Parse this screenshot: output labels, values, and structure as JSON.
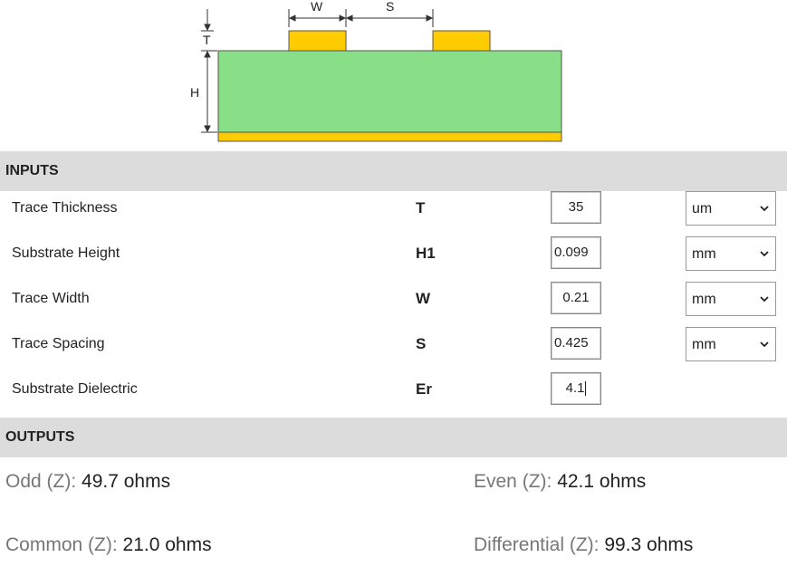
{
  "diagram": {
    "labels": {
      "w": "W",
      "s": "S",
      "t": "T",
      "h": "H"
    },
    "colors": {
      "substrate": "#88df88",
      "trace": "#ffcc00",
      "ground": "#ffcc00",
      "outline": "#555555"
    }
  },
  "inputs": {
    "header": "INPUTS",
    "rows": [
      {
        "label": "Trace Thickness",
        "symbol": "T",
        "value": "35",
        "unit": "um"
      },
      {
        "label": "Substrate Height",
        "symbol": "H1",
        "value": "0.099",
        "unit": "mm"
      },
      {
        "label": "Trace Width",
        "symbol": "W",
        "value": "0.21",
        "unit": "mm"
      },
      {
        "label": "Trace Spacing",
        "symbol": "S",
        "value": "0.425",
        "unit": "mm"
      },
      {
        "label": "Substrate Dielectric",
        "symbol": "Er",
        "value": "4.1"
      }
    ]
  },
  "outputs": {
    "header": "OUTPUTS",
    "odd": {
      "label": "Odd (Z):",
      "value": "49.7 ohms"
    },
    "even": {
      "label": "Even (Z):",
      "value": "42.1 ohms"
    },
    "common": {
      "label": "Common (Z):",
      "value": "21.0 ohms"
    },
    "differential": {
      "label": "Differential (Z):",
      "value": "99.3 ohms"
    }
  }
}
